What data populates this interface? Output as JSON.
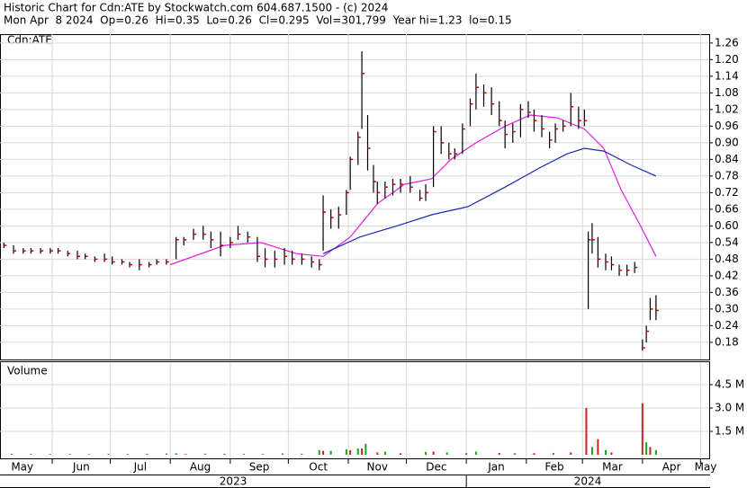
{
  "chart_data": {
    "type": "ohlc",
    "title": "Historic Chart for Cdn:ATE by Stockwatch.com 604.687.1500 - (c) 2024",
    "subtitle": "Mon Apr  8 2024  Op=0.26  Hi=0.35  Lo=0.26  Cl=0.295  Vol=301,799  Year hi=1.23  lo=0.15",
    "symbol_label": "Cdn:ATE",
    "grid": true,
    "bar_color": "#000000",
    "close_color": "#cc0000",
    "xlim": [
      4,
      370.5
    ],
    "xticks": [
      {
        "value": 0,
        "label": "May"
      },
      {
        "value": 31,
        "label": "Jun"
      },
      {
        "value": 61,
        "label": "Jul"
      },
      {
        "value": 92,
        "label": "Aug"
      },
      {
        "value": 123,
        "label": "Sep"
      },
      {
        "value": 153,
        "label": "Oct"
      },
      {
        "value": 184,
        "label": "Nov"
      },
      {
        "value": 214,
        "label": "Dec"
      },
      {
        "value": 245,
        "label": "Jan"
      },
      {
        "value": 276,
        "label": "Feb"
      },
      {
        "value": 305,
        "label": "Mar"
      },
      {
        "value": 336,
        "label": "Apr"
      },
      {
        "value": 366,
        "label": "May"
      }
    ],
    "year_labels": [
      "2023",
      "2024"
    ],
    "ylim": [
      0.118,
      1.292
    ],
    "yticks": [
      0.18,
      0.24,
      {
        "value": 0.3,
        "label": "0.30"
      },
      0.36,
      0.42,
      0.48,
      0.54,
      {
        "value": 0.6,
        "label": "0.60"
      },
      0.66,
      0.72,
      0.78,
      0.84,
      {
        "value": 0.9,
        "label": "0.90"
      },
      0.96,
      1.02,
      1.08,
      1.14,
      {
        "value": 1.2,
        "label": "1.20"
      },
      1.26
    ],
    "x": [
      6,
      11,
      16,
      20,
      25,
      30,
      34,
      39,
      44,
      48,
      53,
      58,
      62,
      67,
      71,
      76,
      81,
      85,
      90,
      95,
      99,
      104,
      109,
      113,
      118,
      123,
      127,
      132,
      137,
      141,
      146,
      151,
      155,
      160,
      165,
      169,
      171,
      175,
      179,
      183,
      185,
      189,
      191,
      194,
      197,
      199,
      203,
      207,
      211,
      216,
      221,
      224,
      228,
      232,
      236,
      239,
      243,
      247,
      250,
      254,
      258,
      262,
      265,
      269,
      273,
      277,
      280,
      284,
      288,
      291,
      295,
      299,
      303,
      306,
      308,
      310,
      313,
      317,
      320,
      324,
      328,
      332,
      336,
      338,
      340,
      343
    ],
    "high": [
      0.54,
      0.53,
      0.52,
      0.52,
      0.52,
      0.52,
      0.52,
      0.51,
      0.51,
      0.5,
      0.49,
      0.5,
      0.49,
      0.48,
      0.47,
      0.48,
      0.47,
      0.48,
      0.48,
      0.56,
      0.56,
      0.59,
      0.6,
      0.58,
      0.58,
      0.56,
      0.6,
      0.58,
      0.56,
      0.52,
      0.51,
      0.52,
      0.51,
      0.5,
      0.49,
      0.48,
      0.71,
      0.66,
      0.67,
      0.73,
      0.85,
      0.94,
      1.23,
      1.0,
      0.82,
      0.76,
      0.76,
      0.77,
      0.77,
      0.78,
      0.73,
      0.75,
      0.96,
      0.96,
      0.9,
      0.88,
      0.97,
      1.06,
      1.15,
      1.11,
      1.1,
      1.05,
      0.98,
      0.97,
      1.04,
      1.05,
      1.02,
      1.0,
      0.94,
      0.97,
      0.98,
      1.08,
      1.03,
      1.02,
      0.58,
      0.61,
      0.56,
      0.5,
      0.49,
      0.46,
      0.46,
      0.47,
      0.19,
      0.24,
      0.34,
      0.35
    ],
    "low": [
      0.52,
      0.5,
      0.5,
      0.5,
      0.5,
      0.5,
      0.5,
      0.49,
      0.48,
      0.48,
      0.47,
      0.47,
      0.46,
      0.46,
      0.45,
      0.44,
      0.45,
      0.46,
      0.46,
      0.48,
      0.53,
      0.55,
      0.55,
      0.52,
      0.49,
      0.52,
      0.55,
      0.54,
      0.47,
      0.45,
      0.45,
      0.46,
      0.46,
      0.46,
      0.45,
      0.44,
      0.51,
      0.59,
      0.59,
      0.64,
      0.73,
      0.82,
      0.95,
      0.8,
      0.72,
      0.68,
      0.7,
      0.71,
      0.72,
      0.72,
      0.69,
      0.69,
      0.74,
      0.86,
      0.84,
      0.84,
      0.86,
      0.96,
      1.02,
      1.03,
      1.0,
      0.96,
      0.88,
      0.9,
      0.92,
      0.99,
      0.94,
      0.92,
      0.88,
      0.9,
      0.94,
      0.96,
      0.95,
      0.96,
      0.3,
      0.5,
      0.45,
      0.44,
      0.44,
      0.42,
      0.42,
      0.43,
      0.15,
      0.18,
      0.26,
      0.26
    ],
    "close": [
      0.53,
      0.51,
      0.51,
      0.51,
      0.51,
      0.51,
      0.51,
      0.5,
      0.49,
      0.49,
      0.48,
      0.48,
      0.47,
      0.47,
      0.46,
      0.46,
      0.46,
      0.47,
      0.47,
      0.55,
      0.55,
      0.57,
      0.57,
      0.55,
      0.53,
      0.54,
      0.57,
      0.56,
      0.49,
      0.48,
      0.48,
      0.49,
      0.48,
      0.48,
      0.47,
      0.46,
      0.65,
      0.63,
      0.64,
      0.72,
      0.84,
      0.92,
      1.15,
      0.88,
      0.76,
      0.72,
      0.74,
      0.75,
      0.75,
      0.74,
      0.7,
      0.72,
      0.94,
      0.9,
      0.86,
      0.86,
      0.95,
      1.04,
      1.1,
      1.08,
      1.04,
      0.98,
      0.93,
      0.94,
      1.02,
      1.01,
      0.98,
      0.95,
      0.91,
      0.95,
      0.96,
      1.03,
      0.98,
      0.98,
      0.55,
      0.55,
      0.48,
      0.47,
      0.46,
      0.44,
      0.44,
      0.45,
      0.16,
      0.22,
      0.3,
      0.295
    ],
    "moving_averages": [
      {
        "color": "#e020e0",
        "x": [
          92,
          120,
          139,
          157,
          171,
          185,
          199,
          213,
          227,
          237,
          250,
          265,
          278,
          292,
          306,
          316,
          325,
          335,
          343
        ],
        "values": [
          0.46,
          0.53,
          0.54,
          0.5,
          0.49,
          0.56,
          0.68,
          0.75,
          0.77,
          0.84,
          0.9,
          0.96,
          1.0,
          0.99,
          0.95,
          0.88,
          0.73,
          0.6,
          0.49
        ]
      },
      {
        "color": "#1a2ab0",
        "x": [
          171,
          190,
          209,
          227,
          246,
          265,
          283,
          297,
          306,
          316,
          330,
          343
        ],
        "values": [
          0.5,
          0.56,
          0.6,
          0.64,
          0.67,
          0.74,
          0.81,
          0.86,
          0.88,
          0.87,
          0.82,
          0.78
        ]
      }
    ],
    "volume": {
      "title": "Volume",
      "ylim": [
        0,
        5.94
      ],
      "yticks": [
        {
          "value": 1.5,
          "label": "1.5 M"
        },
        {
          "value": 3.0,
          "label": "3.0 M"
        },
        {
          "value": 4.5,
          "label": "4.5 M"
        }
      ],
      "series": [
        {
          "color": "#d02020",
          "x": [
            20,
            40,
            60,
            80,
            100,
            120,
            140,
            160,
            171,
            185,
            191,
            199,
            211,
            228,
            245,
            262,
            280,
            299,
            307,
            313,
            320,
            336,
            340
          ],
          "values": [
            0.05,
            0.04,
            0.05,
            0.06,
            0.05,
            0.06,
            0.05,
            0.06,
            0.25,
            0.3,
            0.4,
            0.15,
            0.1,
            0.2,
            0.1,
            0.12,
            0.1,
            0.15,
            3.0,
            1.0,
            0.15,
            3.3,
            0.5
          ]
        },
        {
          "color": "#20a020",
          "x": [
            10,
            30,
            50,
            70,
            90,
            95,
            110,
            130,
            150,
            169,
            175,
            183,
            189,
            193,
            203,
            224,
            235,
            250,
            270,
            290,
            310,
            317,
            338,
            343
          ],
          "values": [
            0.06,
            0.05,
            0.04,
            0.05,
            0.08,
            0.1,
            0.07,
            0.06,
            0.08,
            0.3,
            0.25,
            0.35,
            0.4,
            0.7,
            0.2,
            0.18,
            0.15,
            0.2,
            0.1,
            0.12,
            0.5,
            0.3,
            0.8,
            0.3
          ]
        }
      ]
    }
  }
}
